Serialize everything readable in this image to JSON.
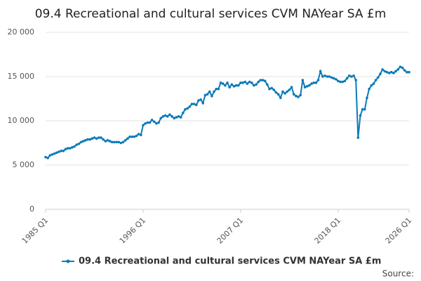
{
  "chart_data": {
    "type": "line",
    "title": "09.4 Recreational and cultural services CVM NAYear SA £m",
    "source": "Source:",
    "categories": [
      "1985 Q1",
      null,
      null,
      null,
      null,
      null,
      null,
      null,
      null,
      null,
      null,
      null,
      null,
      null,
      null,
      null,
      null,
      null,
      null,
      null,
      null,
      null,
      null,
      null,
      null,
      null,
      null,
      null,
      null,
      null,
      null,
      null,
      null,
      null,
      null,
      null,
      null,
      null,
      null,
      null,
      null,
      null,
      null,
      null,
      "1996 Q1",
      null,
      null,
      null,
      null,
      null,
      null,
      null,
      null,
      null,
      null,
      null,
      null,
      null,
      null,
      null,
      null,
      null,
      null,
      null,
      null,
      null,
      null,
      null,
      null,
      null,
      null,
      null,
      null,
      null,
      null,
      null,
      null,
      null,
      null,
      null,
      null,
      null,
      null,
      null,
      null,
      null,
      null,
      null,
      "2007 Q1",
      null,
      null,
      null,
      null,
      null,
      null,
      null,
      null,
      null,
      null,
      null,
      null,
      null,
      null,
      null,
      null,
      null,
      null,
      null,
      null,
      null,
      null,
      null,
      null,
      null,
      null,
      null,
      null,
      null,
      null,
      null,
      null,
      null,
      null,
      null,
      null,
      null,
      null,
      null,
      null,
      null,
      null,
      null,
      "2018 Q1",
      null,
      null,
      null,
      null,
      null,
      null,
      null,
      null,
      null,
      null,
      null,
      null,
      null,
      null,
      null,
      null,
      null,
      null,
      null,
      null,
      null,
      null,
      null,
      null,
      null,
      null,
      null,
      null,
      null,
      null,
      null,
      "2026 Q1"
    ],
    "series": [
      {
        "name": "09.4 Recreational and cultural services CVM NAYear SA £m",
        "color": "#0b7bb8",
        "values": [
          5900,
          5800,
          6100,
          6200,
          6300,
          6400,
          6500,
          6600,
          6600,
          6800,
          6900,
          6900,
          7000,
          7100,
          7300,
          7400,
          7600,
          7700,
          7800,
          7900,
          7900,
          8000,
          8100,
          8000,
          8100,
          8100,
          7900,
          7700,
          7800,
          7700,
          7600,
          7600,
          7600,
          7600,
          7500,
          7600,
          7800,
          8000,
          8200,
          8200,
          8200,
          8300,
          8500,
          8400,
          9500,
          9700,
          9800,
          9800,
          10100,
          9900,
          9700,
          9800,
          10300,
          10500,
          10600,
          10500,
          10700,
          10500,
          10300,
          10400,
          10500,
          10400,
          10900,
          11300,
          11400,
          11600,
          11900,
          11900,
          11800,
          12300,
          12400,
          12000,
          12900,
          13000,
          13300,
          12800,
          13300,
          13600,
          13600,
          14300,
          14200,
          14000,
          14300,
          13800,
          14100,
          13900,
          14000,
          14000,
          14300,
          14300,
          14400,
          14200,
          14400,
          14300,
          14000,
          14100,
          14400,
          14600,
          14600,
          14500,
          14100,
          13600,
          13700,
          13500,
          13200,
          13000,
          12600,
          13300,
          13100,
          13300,
          13500,
          13800,
          13000,
          12800,
          12700,
          12900,
          14600,
          13800,
          13900,
          14000,
          14200,
          14300,
          14300,
          14600,
          15600,
          15000,
          15100,
          15000,
          15000,
          14900,
          14800,
          14700,
          14500,
          14400,
          14400,
          14500,
          14800,
          15100,
          15000,
          15100,
          14600,
          8100,
          10600,
          11300,
          11300,
          12600,
          13600,
          14000,
          14200,
          14600,
          14900,
          15300,
          15800,
          15600,
          15500,
          15400,
          15500,
          15400,
          15600,
          15800,
          16100,
          16000,
          15700,
          15500,
          15500
        ]
      }
    ],
    "ylim": [
      0,
      20000
    ],
    "yticks": [
      0,
      {
        "value": 5000,
        "label": "5 000"
      },
      {
        "value": 10000,
        "label": "10 000"
      },
      {
        "value": 15000,
        "label": "15 000"
      },
      {
        "value": 20000,
        "label": "20 000"
      }
    ],
    "grid": true
  }
}
